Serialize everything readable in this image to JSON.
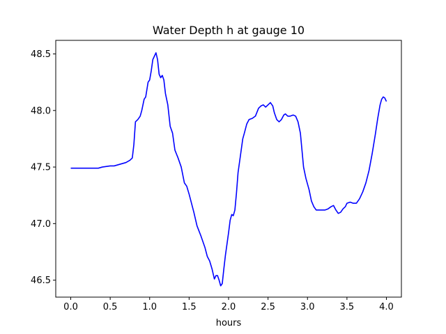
{
  "chart_data": {
    "type": "line",
    "title": "Water Depth h at gauge 10",
    "xlabel": "hours",
    "ylabel": "",
    "xlim": [
      -0.19,
      4.19
    ],
    "ylim": [
      46.35,
      48.62
    ],
    "x_ticks": [
      0.0,
      0.5,
      1.0,
      1.5,
      2.0,
      2.5,
      3.0,
      3.5,
      4.0
    ],
    "x_tick_labels": [
      "0.0",
      "0.5",
      "1.0",
      "1.5",
      "2.0",
      "2.5",
      "3.0",
      "3.5",
      "4.0"
    ],
    "y_ticks": [
      46.5,
      47.0,
      47.5,
      48.0,
      48.5
    ],
    "y_tick_labels": [
      "46.5",
      "47.0",
      "47.5",
      "48.0",
      "48.5"
    ],
    "grid": false,
    "legend": "none",
    "series": [
      {
        "color": "#0000ff",
        "x": [
          0.0,
          0.1,
          0.2,
          0.3,
          0.35,
          0.4,
          0.5,
          0.55,
          0.6,
          0.65,
          0.7,
          0.75,
          0.78,
          0.8,
          0.82,
          0.85,
          0.88,
          0.9,
          0.93,
          0.95,
          0.98,
          1.0,
          1.02,
          1.04,
          1.06,
          1.08,
          1.1,
          1.12,
          1.14,
          1.16,
          1.18,
          1.2,
          1.23,
          1.26,
          1.29,
          1.32,
          1.36,
          1.4,
          1.44,
          1.47,
          1.5,
          1.53,
          1.56,
          1.6,
          1.65,
          1.7,
          1.73,
          1.76,
          1.79,
          1.82,
          1.84,
          1.86,
          1.88,
          1.9,
          1.92,
          1.94,
          1.96,
          1.98,
          2.0,
          2.02,
          2.04,
          2.06,
          2.08,
          2.1,
          2.12,
          2.15,
          2.18,
          2.2,
          2.23,
          2.26,
          2.3,
          2.34,
          2.38,
          2.41,
          2.44,
          2.47,
          2.5,
          2.53,
          2.56,
          2.58,
          2.61,
          2.64,
          2.67,
          2.7,
          2.72,
          2.75,
          2.78,
          2.82,
          2.85,
          2.88,
          2.91,
          2.93,
          2.95,
          2.98,
          3.02,
          3.05,
          3.08,
          3.11,
          3.14,
          3.18,
          3.22,
          3.26,
          3.3,
          3.33,
          3.36,
          3.39,
          3.42,
          3.45,
          3.48,
          3.5,
          3.54,
          3.58,
          3.62,
          3.66,
          3.7,
          3.74,
          3.78,
          3.82,
          3.86,
          3.89,
          3.92,
          3.94,
          3.96,
          3.98,
          4.0
        ],
        "y": [
          47.49,
          47.49,
          47.49,
          47.49,
          47.49,
          47.5,
          47.51,
          47.51,
          47.52,
          47.53,
          47.54,
          47.56,
          47.58,
          47.7,
          47.9,
          47.92,
          47.95,
          48.0,
          48.1,
          48.12,
          48.25,
          48.27,
          48.35,
          48.45,
          48.48,
          48.51,
          48.45,
          48.32,
          48.29,
          48.31,
          48.27,
          48.15,
          48.05,
          47.86,
          47.8,
          47.65,
          47.58,
          47.5,
          47.36,
          47.33,
          47.26,
          47.18,
          47.1,
          46.98,
          46.89,
          46.79,
          46.71,
          46.67,
          46.6,
          46.51,
          46.54,
          46.54,
          46.5,
          46.45,
          46.47,
          46.6,
          46.72,
          46.82,
          46.92,
          47.03,
          47.08,
          47.07,
          47.12,
          47.27,
          47.45,
          47.6,
          47.75,
          47.8,
          47.88,
          47.92,
          47.93,
          47.95,
          48.02,
          48.04,
          48.05,
          48.03,
          48.05,
          48.07,
          48.04,
          47.98,
          47.92,
          47.9,
          47.92,
          47.96,
          47.97,
          47.95,
          47.95,
          47.96,
          47.95,
          47.9,
          47.8,
          47.65,
          47.5,
          47.4,
          47.3,
          47.2,
          47.15,
          47.12,
          47.12,
          47.12,
          47.12,
          47.13,
          47.15,
          47.16,
          47.12,
          47.09,
          47.1,
          47.13,
          47.15,
          47.18,
          47.19,
          47.18,
          47.18,
          47.22,
          47.28,
          47.36,
          47.47,
          47.62,
          47.79,
          47.93,
          48.05,
          48.1,
          48.12,
          48.11,
          48.08
        ]
      }
    ]
  }
}
